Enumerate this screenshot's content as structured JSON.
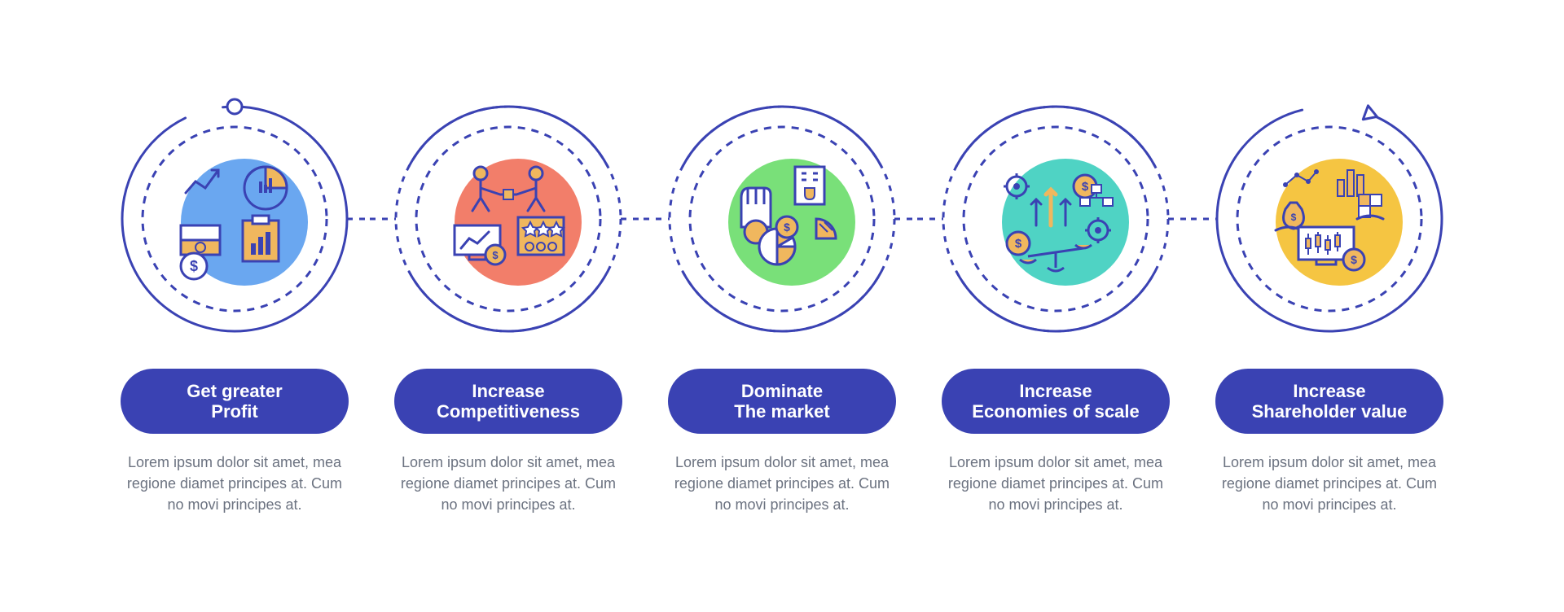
{
  "type": "infographic",
  "layout": {
    "count": 5,
    "item_width": 280,
    "gap": 56,
    "circle_outer_r": 138,
    "circle_inner_r": 113,
    "blob_r": 78,
    "pill_color": "#3a42b3",
    "pill_text_color": "#ffffff",
    "pill_fontsize": 22,
    "body_fontsize": 18,
    "body_color": "#6b7280",
    "stroke_color": "#3a42b3",
    "outer_stroke_width": 3,
    "inner_dash": "9 8",
    "background_color": "#ffffff",
    "icon_line_color": "#3a42b3",
    "icon_fill_accent": "#f0b75e"
  },
  "body_text": "Lorem ipsum dolor sit amet, mea regione diamet principes at. Cum no movi principes at.",
  "items": [
    {
      "blob_color": "#6aa7f0",
      "title_l1": "Get greater",
      "title_l2": "Profit",
      "icon": "profit"
    },
    {
      "blob_color": "#f27e6a",
      "title_l1": "Increase",
      "title_l2": "Competitiveness",
      "icon": "competitiveness"
    },
    {
      "blob_color": "#79e079",
      "title_l1": "Dominate",
      "title_l2": "The market",
      "icon": "dominate"
    },
    {
      "blob_color": "#4fd3c4",
      "title_l1": "Increase",
      "title_l2": "Economies of scale",
      "icon": "scale"
    },
    {
      "blob_color": "#f5c542",
      "title_l1": "Increase",
      "title_l2": "Shareholder value",
      "icon": "shareholder"
    }
  ]
}
